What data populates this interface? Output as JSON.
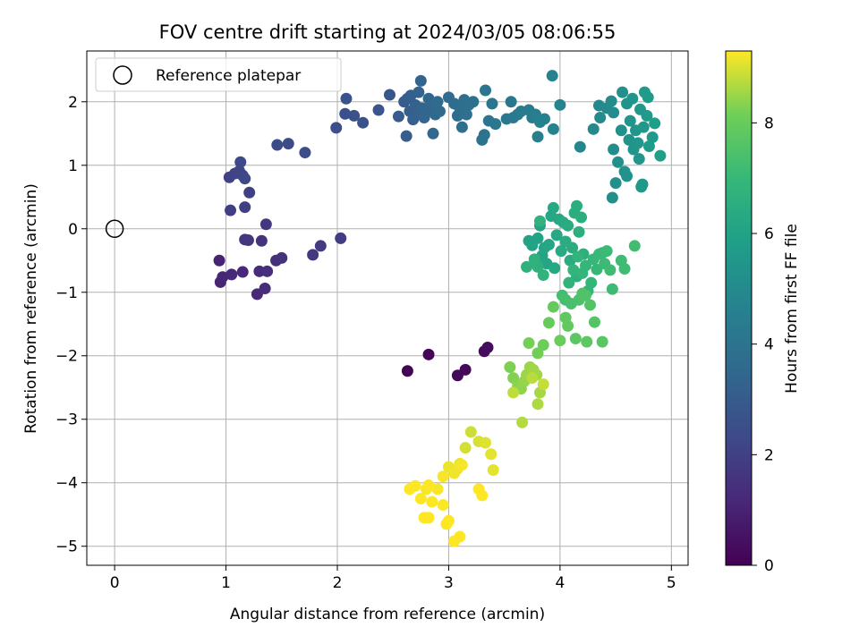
{
  "chart_data": {
    "type": "scatter",
    "title": "FOV centre drift starting at 2024/03/05 08:06:55",
    "xlabel": "Angular distance from reference (arcmin)",
    "ylabel": "Rotation from reference (arcmin)",
    "xlim": [
      -0.25,
      5.15
    ],
    "ylim": [
      -5.3,
      2.8
    ],
    "xticks": [
      "0",
      "1",
      "2",
      "3",
      "4",
      "5"
    ],
    "yticks": [
      "−5",
      "−4",
      "−3",
      "−2",
      "−1",
      "0",
      "1",
      "2"
    ],
    "grid": true,
    "colormap": "viridis",
    "colorbar": {
      "label": "Hours from first FF file",
      "range": [
        0,
        9.3
      ],
      "ticks": [
        "0",
        "2",
        "4",
        "6",
        "8"
      ]
    },
    "legend": {
      "position": "top-left",
      "entries": [
        {
          "label": "Reference platepar",
          "marker": "open-circle"
        }
      ]
    },
    "reference_point": {
      "x": 0,
      "y": 0
    },
    "series": [
      {
        "marker": "filled-circle",
        "points": [
          [
            2.63,
            -2.24,
            0.1
          ],
          [
            2.82,
            -1.98,
            0.15
          ],
          [
            3.08,
            -2.31,
            0.2
          ],
          [
            3.15,
            -2.22,
            0.25
          ],
          [
            3.32,
            -1.93,
            0.3
          ],
          [
            3.35,
            -1.87,
            0.35
          ],
          [
            0.94,
            -0.5,
            1.0
          ],
          [
            0.95,
            -0.84,
            1.05
          ],
          [
            0.97,
            -0.76,
            1.1
          ],
          [
            1.05,
            -0.72,
            1.15
          ],
          [
            1.15,
            -0.68,
            1.2
          ],
          [
            1.28,
            -1.03,
            1.25
          ],
          [
            1.35,
            -0.94,
            1.3
          ],
          [
            1.3,
            -0.67,
            1.35
          ],
          [
            1.37,
            -0.67,
            1.4
          ],
          [
            1.45,
            -0.5,
            1.45
          ],
          [
            1.5,
            -0.46,
            1.5
          ],
          [
            1.32,
            -0.19,
            1.55
          ],
          [
            1.17,
            -0.17,
            1.6
          ],
          [
            1.2,
            -0.18,
            1.65
          ],
          [
            1.36,
            0.07,
            1.7
          ],
          [
            1.78,
            -0.41,
            1.75
          ],
          [
            1.85,
            -0.27,
            1.8
          ],
          [
            2.03,
            -0.15,
            1.85
          ],
          [
            1.04,
            0.29,
            1.9
          ],
          [
            1.17,
            0.34,
            1.95
          ],
          [
            1.21,
            0.57,
            2.0
          ],
          [
            1.03,
            0.81,
            2.05
          ],
          [
            1.08,
            0.87,
            2.1
          ],
          [
            1.12,
            0.91,
            2.15
          ],
          [
            1.15,
            0.84,
            2.2
          ],
          [
            1.17,
            0.79,
            2.25
          ],
          [
            1.13,
            1.05,
            2.3
          ],
          [
            1.46,
            1.32,
            2.35
          ],
          [
            1.56,
            1.34,
            2.4
          ],
          [
            1.71,
            1.2,
            2.45
          ],
          [
            1.99,
            1.59,
            2.5
          ],
          [
            2.07,
            1.81,
            2.55
          ],
          [
            2.15,
            1.78,
            2.6
          ],
          [
            2.23,
            1.67,
            2.65
          ],
          [
            2.08,
            2.05,
            2.7
          ],
          [
            2.37,
            1.87,
            2.75
          ],
          [
            2.47,
            2.11,
            2.8
          ],
          [
            2.55,
            1.77,
            3.0
          ],
          [
            2.6,
            2.0,
            3.0
          ],
          [
            2.62,
            1.46,
            3.05
          ],
          [
            2.63,
            2.05,
            3.1
          ],
          [
            2.65,
            1.85,
            3.1
          ],
          [
            2.66,
            2.1,
            3.15
          ],
          [
            2.68,
            1.72,
            3.2
          ],
          [
            2.7,
            1.95,
            3.2
          ],
          [
            2.72,
            1.8,
            3.25
          ],
          [
            2.73,
            2.15,
            3.3
          ],
          [
            2.75,
            2.33,
            3.35
          ],
          [
            2.76,
            1.9,
            3.35
          ],
          [
            2.78,
            1.75,
            3.4
          ],
          [
            2.8,
            1.85,
            3.4
          ],
          [
            2.82,
            2.05,
            3.45
          ],
          [
            2.84,
            1.93,
            3.5
          ],
          [
            2.86,
            1.5,
            3.5
          ],
          [
            2.88,
            1.8,
            3.55
          ],
          [
            2.9,
            2.0,
            3.6
          ],
          [
            2.92,
            1.85,
            3.6
          ],
          [
            3.0,
            2.07,
            3.65
          ],
          [
            3.05,
            1.97,
            3.7
          ],
          [
            3.08,
            1.78,
            3.7
          ],
          [
            3.1,
            1.9,
            3.75
          ],
          [
            3.12,
            1.6,
            3.8
          ],
          [
            3.14,
            2.03,
            3.8
          ],
          [
            3.16,
            1.8,
            3.85
          ],
          [
            3.18,
            1.95,
            3.9
          ],
          [
            3.22,
            2.0,
            3.9
          ],
          [
            3.3,
            1.4,
            3.95
          ],
          [
            3.32,
            1.48,
            4.0
          ],
          [
            3.33,
            2.18,
            4.05
          ],
          [
            3.36,
            1.7,
            4.05
          ],
          [
            3.39,
            1.97,
            4.1
          ],
          [
            3.42,
            1.65,
            4.15
          ],
          [
            3.52,
            1.73,
            4.2
          ],
          [
            3.56,
            2.0,
            4.2
          ],
          [
            3.58,
            1.75,
            4.25
          ],
          [
            3.62,
            1.8,
            4.3
          ],
          [
            3.65,
            1.85,
            4.35
          ],
          [
            3.72,
            1.87,
            4.35
          ],
          [
            3.75,
            1.75,
            4.4
          ],
          [
            3.78,
            1.8,
            4.45
          ],
          [
            3.8,
            1.45,
            4.5
          ],
          [
            3.82,
            1.68,
            4.55
          ],
          [
            3.86,
            1.73,
            4.6
          ],
          [
            3.93,
            2.41,
            4.65
          ],
          [
            3.94,
            1.57,
            4.7
          ],
          [
            4.0,
            1.95,
            4.75
          ],
          [
            4.18,
            1.29,
            4.85
          ],
          [
            4.3,
            1.57,
            4.9
          ],
          [
            4.35,
            1.94,
            4.95
          ],
          [
            4.36,
            1.75,
            5.0
          ],
          [
            4.42,
            1.9,
            5.0
          ],
          [
            4.46,
            2.01,
            5.05
          ],
          [
            4.48,
            1.83,
            5.05
          ],
          [
            4.48,
            1.25,
            5.1
          ],
          [
            4.5,
            0.72,
            5.15
          ],
          [
            4.47,
            0.49,
            5.2
          ],
          [
            4.52,
            1.05,
            5.2
          ],
          [
            4.55,
            1.55,
            5.25
          ],
          [
            4.56,
            2.15,
            5.25
          ],
          [
            4.58,
            0.9,
            5.3
          ],
          [
            4.6,
            0.83,
            5.3
          ],
          [
            4.6,
            1.97,
            5.35
          ],
          [
            4.62,
            1.4,
            5.35
          ],
          [
            4.63,
            1.7,
            5.4
          ],
          [
            4.65,
            2.05,
            5.4
          ],
          [
            4.66,
            1.25,
            5.45
          ],
          [
            4.68,
            1.55,
            5.45
          ],
          [
            4.7,
            1.35,
            5.5
          ],
          [
            4.71,
            1.1,
            5.5
          ],
          [
            4.72,
            1.88,
            5.55
          ],
          [
            4.73,
            0.66,
            5.55
          ],
          [
            4.74,
            0.7,
            5.6
          ],
          [
            4.75,
            1.6,
            5.6
          ],
          [
            4.76,
            2.15,
            5.65
          ],
          [
            4.78,
            1.78,
            5.65
          ],
          [
            4.79,
            2.07,
            5.7
          ],
          [
            4.8,
            1.3,
            5.7
          ],
          [
            4.83,
            1.44,
            5.75
          ],
          [
            4.85,
            1.66,
            5.8
          ],
          [
            4.9,
            1.15,
            5.85
          ],
          [
            3.72,
            -0.19,
            6.0
          ],
          [
            3.75,
            -0.26,
            6.0
          ],
          [
            3.78,
            -0.53,
            6.05
          ],
          [
            3.8,
            -0.15,
            6.05
          ],
          [
            3.82,
            0.05,
            6.1
          ],
          [
            3.84,
            -0.42,
            6.1
          ],
          [
            3.86,
            -0.3,
            6.15
          ],
          [
            3.88,
            -0.55,
            6.15
          ],
          [
            3.9,
            -0.25,
            6.2
          ],
          [
            3.92,
            0.2,
            6.2
          ],
          [
            3.94,
            0.33,
            6.25
          ],
          [
            3.95,
            -0.62,
            6.25
          ],
          [
            3.97,
            -0.1,
            6.3
          ],
          [
            3.99,
            0.15,
            6.3
          ],
          [
            4.01,
            -0.35,
            6.35
          ],
          [
            4.03,
            0.1,
            6.35
          ],
          [
            4.05,
            -0.2,
            6.4
          ],
          [
            4.07,
            0.05,
            6.4
          ],
          [
            4.09,
            -0.5,
            6.45
          ],
          [
            4.11,
            -0.3,
            6.45
          ],
          [
            4.13,
            0.25,
            6.5
          ],
          [
            4.15,
            0.36,
            6.5
          ],
          [
            4.17,
            -0.05,
            6.55
          ],
          [
            4.19,
            0.18,
            6.55
          ],
          [
            4.21,
            -0.4,
            6.6
          ],
          [
            4.15,
            -0.75,
            6.6
          ],
          [
            3.8,
            -0.6,
            6.65
          ],
          [
            3.7,
            -0.6,
            6.65
          ],
          [
            3.82,
            0.12,
            6.7
          ],
          [
            3.77,
            -0.48,
            6.7
          ],
          [
            3.85,
            -0.73,
            6.8
          ],
          [
            4.08,
            -0.85,
            6.8
          ],
          [
            4.12,
            -0.65,
            6.85
          ],
          [
            4.16,
            -0.44,
            6.85
          ],
          [
            4.2,
            -0.7,
            6.9
          ],
          [
            4.23,
            -0.58,
            6.9
          ],
          [
            4.25,
            -0.98,
            6.95
          ],
          [
            4.28,
            -0.85,
            6.95
          ],
          [
            4.3,
            -0.48,
            7.0
          ],
          [
            4.33,
            -0.64,
            7.0
          ],
          [
            4.35,
            -0.4,
            7.05
          ],
          [
            4.38,
            -0.38,
            7.05
          ],
          [
            4.4,
            -0.55,
            7.1
          ],
          [
            4.42,
            -0.35,
            7.1
          ],
          [
            4.45,
            -0.65,
            7.15
          ],
          [
            4.47,
            -0.95,
            7.15
          ],
          [
            4.55,
            -0.5,
            7.2
          ],
          [
            4.58,
            -0.63,
            7.2
          ],
          [
            4.67,
            -0.27,
            7.25
          ],
          [
            4.02,
            -1.05,
            7.3
          ],
          [
            4.05,
            -1.12,
            7.35
          ],
          [
            4.1,
            -1.18,
            7.4
          ],
          [
            4.17,
            -1.12,
            7.45
          ],
          [
            4.2,
            -1.02,
            7.5
          ],
          [
            4.23,
            -1.05,
            7.55
          ],
          [
            4.27,
            -1.2,
            7.6
          ],
          [
            4.31,
            -1.47,
            7.65
          ],
          [
            4.38,
            -1.78,
            7.7
          ],
          [
            4.14,
            -1.73,
            7.75
          ],
          [
            4.24,
            -1.78,
            7.8
          ],
          [
            4.05,
            -1.4,
            7.85
          ],
          [
            4.07,
            -1.53,
            7.9
          ],
          [
            3.94,
            -1.23,
            7.95
          ],
          [
            3.9,
            -1.48,
            8.0
          ],
          [
            4.0,
            -1.76,
            8.05
          ],
          [
            3.85,
            -1.83,
            8.1
          ],
          [
            3.8,
            -1.96,
            8.15
          ],
          [
            3.72,
            -1.8,
            8.2
          ],
          [
            3.55,
            -2.18,
            8.25
          ],
          [
            3.58,
            -2.35,
            8.3
          ],
          [
            3.62,
            -2.48,
            8.35
          ],
          [
            3.65,
            -2.52,
            8.4
          ],
          [
            3.68,
            -2.4,
            8.45
          ],
          [
            3.7,
            -2.3,
            8.5
          ],
          [
            3.73,
            -2.18,
            8.5
          ],
          [
            3.76,
            -2.22,
            8.55
          ],
          [
            3.79,
            -2.3,
            8.55
          ],
          [
            3.82,
            -2.58,
            8.6
          ],
          [
            3.8,
            -2.76,
            8.65
          ],
          [
            3.66,
            -3.05,
            8.7
          ],
          [
            3.75,
            -2.35,
            8.75
          ],
          [
            3.58,
            -2.58,
            8.8
          ],
          [
            3.85,
            -2.45,
            8.85
          ],
          [
            3.2,
            -3.2,
            8.9
          ],
          [
            3.15,
            -3.45,
            8.95
          ],
          [
            3.27,
            -3.35,
            9.0
          ],
          [
            3.33,
            -3.37,
            9.05
          ],
          [
            3.38,
            -3.55,
            9.1
          ],
          [
            3.4,
            -3.8,
            9.1
          ],
          [
            3.1,
            -3.7,
            9.15
          ],
          [
            3.0,
            -3.75,
            9.15
          ],
          [
            3.05,
            -3.85,
            9.2
          ],
          [
            3.08,
            -3.78,
            9.2
          ],
          [
            3.12,
            -3.72,
            9.25
          ],
          [
            2.95,
            -3.9,
            9.25
          ],
          [
            2.9,
            -4.1,
            9.25
          ],
          [
            2.8,
            -4.1,
            9.25
          ],
          [
            2.75,
            -4.25,
            9.3
          ],
          [
            2.85,
            -4.3,
            9.3
          ],
          [
            2.95,
            -4.35,
            9.3
          ],
          [
            2.65,
            -4.1,
            9.3
          ],
          [
            2.7,
            -4.05,
            9.3
          ],
          [
            2.78,
            -4.55,
            9.3
          ],
          [
            2.82,
            -4.55,
            9.3
          ],
          [
            2.98,
            -4.65,
            9.3
          ],
          [
            3.05,
            -4.92,
            9.3
          ],
          [
            3.1,
            -4.85,
            9.3
          ],
          [
            3.0,
            -4.6,
            9.3
          ],
          [
            3.27,
            -4.1,
            9.3
          ],
          [
            3.3,
            -4.2,
            9.3
          ],
          [
            2.82,
            -4.04,
            9.3
          ]
        ]
      }
    ]
  }
}
